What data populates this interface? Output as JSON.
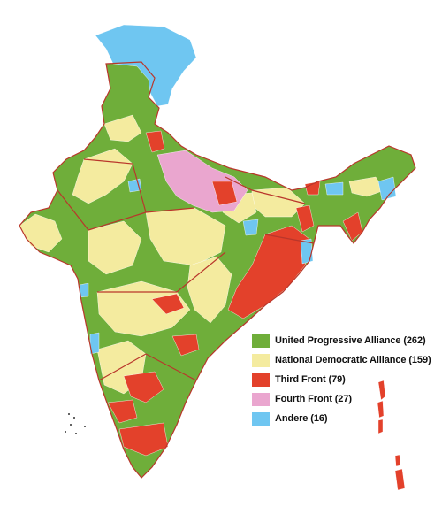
{
  "legend": {
    "items": [
      {
        "label": "United Progressive Alliance (262)",
        "color": "#6fae3a"
      },
      {
        "label": "National Democratic Alliance (159)",
        "color": "#f4eb9f"
      },
      {
        "label": "Third Front (79)",
        "color": "#e3412b"
      },
      {
        "label": "Fourth Front (27)",
        "color": "#eaa6cf"
      },
      {
        "label": "Andere (16)",
        "color": "#6fc6f1"
      }
    ]
  },
  "colors": {
    "upa": "#6fae3a",
    "nda": "#f4eb9f",
    "third_front": "#e3412b",
    "fourth_front": "#eaa6cf",
    "others": "#6fc6f1",
    "border": "#b9362b"
  }
}
